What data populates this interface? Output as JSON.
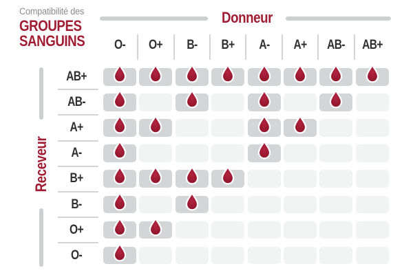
{
  "title": {
    "eyebrow": "Compatibilité des",
    "line1": "GROUPES",
    "line2": "SANGUINS"
  },
  "axes": {
    "donor_label": "Donneur",
    "receiver_label": "Receveur"
  },
  "donors": [
    "O-",
    "O+",
    "B-",
    "B+",
    "A-",
    "A+",
    "AB-",
    "AB+"
  ],
  "receivers": [
    "AB+",
    "AB-",
    "A+",
    "A-",
    "B+",
    "B-",
    "O+",
    "O-"
  ],
  "marker": {
    "icon": "blood-drop-icon",
    "meaning": "compatible"
  },
  "colors": {
    "accent_red": "#A01D33",
    "heading_gray": "#8C8C8C",
    "label_dark": "#303030",
    "cell_compatible": "#D3D5D6",
    "cell_empty": "#F2F3F3",
    "divider": "#D4D4D4",
    "axis_line": "#CDCFD0",
    "drop_center": "#B32440",
    "drop_mid": "#9E1B33",
    "drop_edge": "#8A142A",
    "drop_outline": "#FFFFFF"
  },
  "chart_data": {
    "type": "heatmap",
    "title": "Compatibilité des groupes sanguins",
    "xlabel": "Donneur",
    "ylabel": "Receveur",
    "x_categories": [
      "O-",
      "O+",
      "B-",
      "B+",
      "A-",
      "A+",
      "AB-",
      "AB+"
    ],
    "y_categories": [
      "AB+",
      "AB-",
      "A+",
      "A-",
      "B+",
      "B-",
      "O+",
      "O-"
    ],
    "values": [
      [
        1,
        1,
        1,
        1,
        1,
        1,
        1,
        1
      ],
      [
        1,
        0,
        1,
        0,
        1,
        0,
        1,
        0
      ],
      [
        1,
        1,
        0,
        0,
        1,
        1,
        0,
        0
      ],
      [
        1,
        0,
        0,
        0,
        1,
        0,
        0,
        0
      ],
      [
        1,
        1,
        1,
        1,
        0,
        0,
        0,
        0
      ],
      [
        1,
        0,
        1,
        0,
        0,
        0,
        0,
        0
      ],
      [
        1,
        1,
        0,
        0,
        0,
        0,
        0,
        0
      ],
      [
        1,
        0,
        0,
        0,
        0,
        0,
        0,
        0
      ]
    ],
    "value_meaning": {
      "1": "compatible (blood drop shown in gray cell)",
      "0": "not compatible (empty light cell)"
    },
    "legend_position": "none",
    "grid": false
  }
}
